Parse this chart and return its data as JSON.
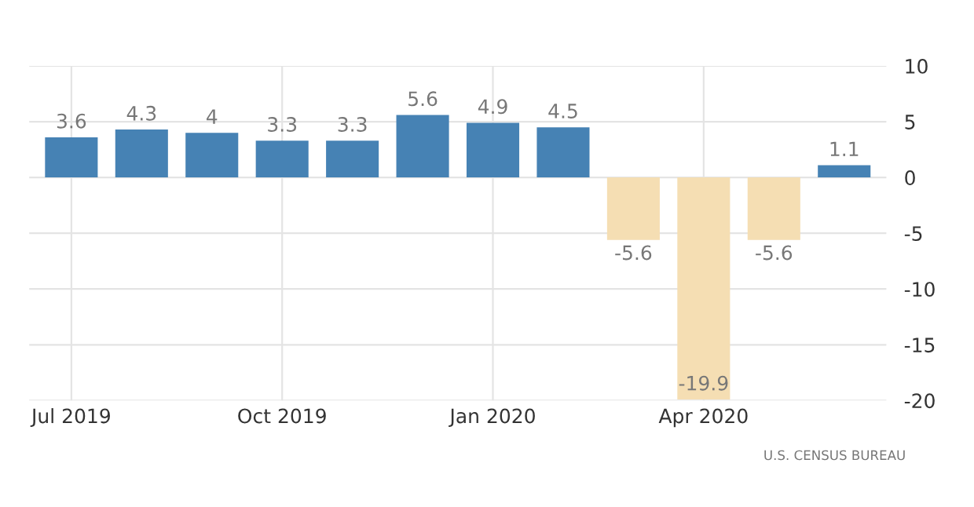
{
  "chart_data": {
    "type": "bar",
    "categories": [
      "Jul 2019",
      null,
      null,
      "Oct 2019",
      null,
      null,
      "Jan 2020",
      null,
      null,
      "Apr 2020",
      null,
      null
    ],
    "values": [
      3.6,
      4.3,
      4,
      3.3,
      3.3,
      5.6,
      4.9,
      4.5,
      -5.6,
      -19.9,
      -5.6,
      1.1
    ],
    "colors": [
      "#4682b4",
      "#4682b4",
      "#4682b4",
      "#4682b4",
      "#4682b4",
      "#4682b4",
      "#4682b4",
      "#4682b4",
      "#f5deb3",
      "#f5deb3",
      "#f5deb3",
      "#4682b4"
    ],
    "ylim": [
      -20,
      10
    ],
    "yticks": [
      -20,
      -15,
      -10,
      -5,
      0,
      5,
      10
    ],
    "grid": true,
    "data_labels": true,
    "annotations": [
      "U.S. CENSUS BUREAU"
    ]
  }
}
